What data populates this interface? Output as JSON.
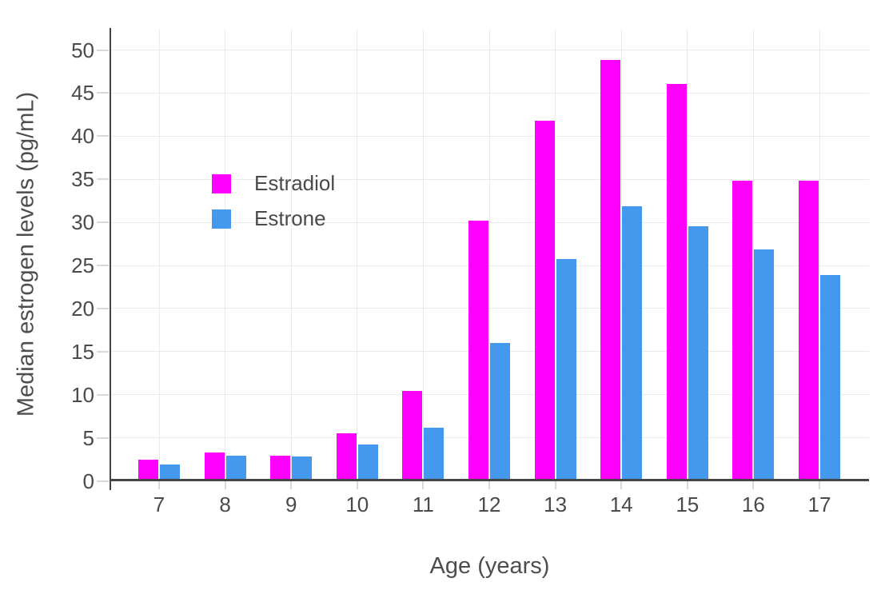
{
  "figure_title": "",
  "legend": {
    "items": [
      {
        "label": "Estradiol",
        "color": "#FF00FF"
      },
      {
        "label": "Estrone",
        "color": "#4499EE"
      }
    ]
  },
  "chart_data": {
    "type": "bar",
    "title": "",
    "xlabel": "Age (years)",
    "ylabel": "Median estrogen levels (pg/mL)",
    "categories": [
      "7",
      "8",
      "9",
      "10",
      "11",
      "12",
      "13",
      "14",
      "15",
      "16",
      "17"
    ],
    "series": [
      {
        "name": "Estradiol",
        "color": "#FF00FF",
        "values": [
          2.2,
          3.1,
          2.7,
          5.3,
          10.2,
          30.0,
          41.6,
          48.6,
          45.8,
          34.6,
          34.6
        ]
      },
      {
        "name": "Estrone",
        "color": "#4499EE",
        "values": [
          1.7,
          2.7,
          2.6,
          4.0,
          5.9,
          15.8,
          25.5,
          31.6,
          29.3,
          26.6,
          23.7
        ]
      }
    ],
    "ylim": [
      0,
      50
    ],
    "yticks": [
      0,
      5,
      10,
      15,
      20,
      25,
      30,
      35,
      40,
      45,
      50
    ],
    "grid": true,
    "grid_orientation": "both",
    "legend_position": "inside-top-left",
    "bar_value_labels": false,
    "background": "#FFFFFF"
  }
}
